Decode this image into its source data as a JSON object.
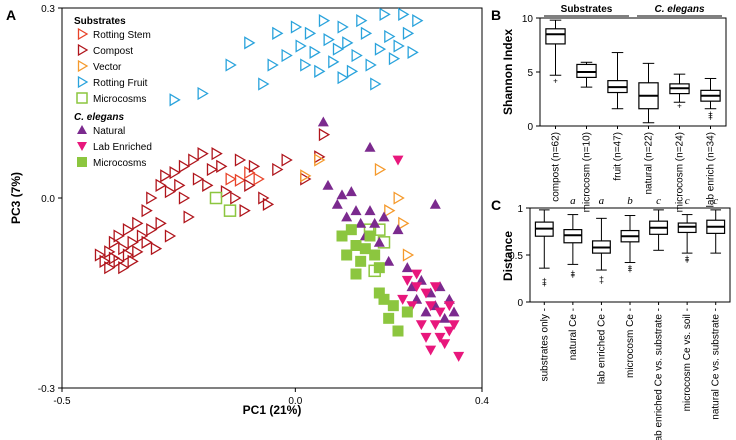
{
  "figure": {
    "panel_a": "A",
    "panel_b": "B",
    "panel_c": "C"
  },
  "colors": {
    "rotting_stem": "#e8442a",
    "compost": "#b0151c",
    "vector": "#f59a2c",
    "rotting_fruit": "#2aa3dc",
    "microcosms_sub": "#8cc63f",
    "natural": "#7b2a8e",
    "lab_enriched": "#e8177c",
    "microcosms_ce": "#8cc63f"
  },
  "chart_data": [
    {
      "type": "scatter",
      "title": "",
      "xlabel": "PC1 (21%)",
      "ylabel": "PC3 (7%)",
      "xlim": [
        -0.5,
        0.4
      ],
      "ylim": [
        -0.3,
        0.3
      ],
      "xticks": [
        "-0.5",
        "0.0",
        "0.4"
      ],
      "yticks": [
        "0.3",
        "0.0",
        "-0.3"
      ],
      "legend": {
        "substrates_title": "Substrates",
        "ce_title": "C. elegans",
        "entries": [
          {
            "key": "rotting_stem",
            "label": "Rotting Stem"
          },
          {
            "key": "compost",
            "label": "Compost"
          },
          {
            "key": "vector",
            "label": "Vector"
          },
          {
            "key": "rotting_fruit",
            "label": "Rotting Fruit"
          },
          {
            "key": "microcosms_sub",
            "label": "Microcosms"
          },
          {
            "key": "natural",
            "label": "Natural"
          },
          {
            "key": "lab_enriched",
            "label": "Lab Enriched"
          },
          {
            "key": "microcosms_ce",
            "label": "Microcosms"
          }
        ]
      },
      "series": [
        {
          "name": "Rotting Stem",
          "key": "rotting_stem",
          "shape": "tri-right-open",
          "points": [
            [
              -0.14,
              0.03
            ],
            [
              -0.12,
              0.028
            ],
            [
              -0.1,
              0.04
            ],
            [
              -0.08,
              0.03
            ]
          ]
        },
        {
          "name": "Compost",
          "key": "compost",
          "shape": "tri-right-open",
          "points": [
            [
              -0.42,
              -0.09
            ],
            [
              -0.41,
              -0.1
            ],
            [
              -0.4,
              -0.085
            ],
            [
              -0.4,
              -0.11
            ],
            [
              -0.39,
              -0.07
            ],
            [
              -0.39,
              -0.095
            ],
            [
              -0.38,
              -0.1
            ],
            [
              -0.38,
              -0.06
            ],
            [
              -0.37,
              -0.08
            ],
            [
              -0.37,
              -0.11
            ],
            [
              -0.36,
              -0.05
            ],
            [
              -0.36,
              -0.09
            ],
            [
              -0.35,
              -0.07
            ],
            [
              -0.35,
              -0.1
            ],
            [
              -0.34,
              -0.04
            ],
            [
              -0.34,
              -0.085
            ],
            [
              -0.33,
              -0.06
            ],
            [
              -0.32,
              -0.02
            ],
            [
              -0.32,
              -0.07
            ],
            [
              -0.31,
              0.0
            ],
            [
              -0.31,
              -0.05
            ],
            [
              -0.3,
              -0.08
            ],
            [
              -0.29,
              0.02
            ],
            [
              -0.29,
              -0.04
            ],
            [
              -0.28,
              0.035
            ],
            [
              -0.27,
              0.01
            ],
            [
              -0.27,
              -0.06
            ],
            [
              -0.26,
              0.04
            ],
            [
              -0.25,
              0.02
            ],
            [
              -0.24,
              0.05
            ],
            [
              -0.24,
              0.0
            ],
            [
              -0.23,
              -0.03
            ],
            [
              -0.22,
              0.06
            ],
            [
              -0.21,
              0.03
            ],
            [
              -0.2,
              0.07
            ],
            [
              -0.19,
              0.02
            ],
            [
              -0.18,
              0.045
            ],
            [
              -0.17,
              0.07
            ],
            [
              -0.16,
              0.05
            ],
            [
              -0.15,
              0.01
            ],
            [
              -0.13,
              0.0
            ],
            [
              -0.12,
              0.06
            ],
            [
              -0.11,
              -0.02
            ],
            [
              -0.1,
              0.02
            ],
            [
              -0.09,
              0.05
            ],
            [
              -0.07,
              0.0
            ],
            [
              -0.06,
              -0.01
            ],
            [
              -0.04,
              0.045
            ],
            [
              -0.02,
              0.06
            ],
            [
              0.02,
              0.03
            ],
            [
              0.05,
              0.065
            ],
            [
              0.06,
              0.1
            ]
          ]
        },
        {
          "name": "Vector",
          "key": "vector",
          "shape": "tri-right-open",
          "points": [
            [
              0.02,
              0.035
            ],
            [
              0.05,
              0.06
            ],
            [
              0.18,
              0.045
            ],
            [
              0.2,
              -0.02
            ],
            [
              0.22,
              0.0
            ],
            [
              0.23,
              -0.04
            ],
            [
              0.24,
              -0.09
            ]
          ]
        },
        {
          "name": "Rotting Fruit",
          "key": "rotting_fruit",
          "shape": "tri-right-open",
          "points": [
            [
              -0.26,
              0.155
            ],
            [
              -0.2,
              0.165
            ],
            [
              -0.14,
              0.21
            ],
            [
              -0.1,
              0.245
            ],
            [
              -0.07,
              0.18
            ],
            [
              -0.05,
              0.21
            ],
            [
              -0.04,
              0.26
            ],
            [
              -0.02,
              0.225
            ],
            [
              0.0,
              0.27
            ],
            [
              0.01,
              0.24
            ],
            [
              0.02,
              0.21
            ],
            [
              0.03,
              0.26
            ],
            [
              0.04,
              0.23
            ],
            [
              0.05,
              0.2
            ],
            [
              0.06,
              0.28
            ],
            [
              0.07,
              0.25
            ],
            [
              0.08,
              0.215
            ],
            [
              0.09,
              0.235
            ],
            [
              0.1,
              0.19
            ],
            [
              0.1,
              0.27
            ],
            [
              0.11,
              0.245
            ],
            [
              0.12,
              0.2
            ],
            [
              0.13,
              0.225
            ],
            [
              0.14,
              0.28
            ],
            [
              0.15,
              0.26
            ],
            [
              0.16,
              0.21
            ],
            [
              0.17,
              0.18
            ],
            [
              0.18,
              0.235
            ],
            [
              0.19,
              0.29
            ],
            [
              0.2,
              0.255
            ],
            [
              0.21,
              0.22
            ],
            [
              0.22,
              0.24
            ],
            [
              0.23,
              0.29
            ],
            [
              0.24,
              0.26
            ],
            [
              0.25,
              0.23
            ],
            [
              0.26,
              0.28
            ]
          ]
        },
        {
          "name": "Microcosms (substrate)",
          "key": "microcosms_sub",
          "shape": "square-open",
          "points": [
            [
              -0.17,
              0.0
            ],
            [
              -0.14,
              -0.02
            ],
            [
              0.16,
              -0.05
            ],
            [
              0.17,
              -0.115
            ],
            [
              0.18,
              -0.05
            ],
            [
              0.19,
              -0.07
            ]
          ]
        },
        {
          "name": "Natural",
          "key": "natural",
          "shape": "tri-up",
          "points": [
            [
              0.06,
              0.12
            ],
            [
              0.07,
              0.02
            ],
            [
              0.09,
              -0.01
            ],
            [
              0.1,
              0.005
            ],
            [
              0.11,
              -0.03
            ],
            [
              0.12,
              0.01
            ],
            [
              0.13,
              -0.02
            ],
            [
              0.14,
              -0.04
            ],
            [
              0.15,
              -0.06
            ],
            [
              0.16,
              -0.02
            ],
            [
              0.17,
              -0.04
            ],
            [
              0.18,
              -0.07
            ],
            [
              0.19,
              -0.03
            ],
            [
              0.2,
              -0.1
            ],
            [
              0.22,
              -0.05
            ],
            [
              0.24,
              -0.11
            ],
            [
              0.25,
              -0.14
            ],
            [
              0.26,
              -0.16
            ],
            [
              0.27,
              -0.13
            ],
            [
              0.28,
              -0.18
            ],
            [
              0.29,
              -0.15
            ],
            [
              0.3,
              -0.17
            ],
            [
              0.31,
              -0.14
            ],
            [
              0.32,
              -0.19
            ],
            [
              0.33,
              -0.16
            ],
            [
              0.34,
              -0.18
            ],
            [
              0.3,
              -0.01
            ],
            [
              0.16,
              0.08
            ]
          ]
        },
        {
          "name": "Lab Enriched",
          "key": "lab_enriched",
          "shape": "tri-down",
          "points": [
            [
              0.22,
              0.06
            ],
            [
              0.23,
              -0.16
            ],
            [
              0.24,
              -0.13
            ],
            [
              0.25,
              -0.17
            ],
            [
              0.26,
              -0.12
            ],
            [
              0.27,
              -0.2
            ],
            [
              0.28,
              -0.15
            ],
            [
              0.28,
              -0.22
            ],
            [
              0.29,
              -0.17
            ],
            [
              0.3,
              -0.14
            ],
            [
              0.3,
              -0.2
            ],
            [
              0.31,
              -0.18
            ],
            [
              0.32,
              -0.23
            ],
            [
              0.33,
              -0.17
            ],
            [
              0.33,
              -0.21
            ],
            [
              0.34,
              -0.2
            ],
            [
              0.35,
              -0.25
            ],
            [
              0.29,
              -0.24
            ],
            [
              0.31,
              -0.22
            ],
            [
              0.26,
              -0.14
            ]
          ]
        },
        {
          "name": "Microcosms (C. elegans)",
          "key": "microcosms_ce",
          "shape": "square",
          "points": [
            [
              0.1,
              -0.06
            ],
            [
              0.11,
              -0.09
            ],
            [
              0.12,
              -0.05
            ],
            [
              0.13,
              -0.075
            ],
            [
              0.14,
              -0.1
            ],
            [
              0.15,
              -0.08
            ],
            [
              0.16,
              -0.06
            ],
            [
              0.17,
              -0.09
            ],
            [
              0.18,
              -0.11
            ],
            [
              0.19,
              -0.16
            ],
            [
              0.2,
              -0.19
            ],
            [
              0.21,
              -0.17
            ],
            [
              0.22,
              -0.21
            ],
            [
              0.24,
              -0.18
            ],
            [
              0.18,
              -0.15
            ],
            [
              0.13,
              -0.12
            ]
          ]
        }
      ]
    },
    {
      "type": "box",
      "title": "",
      "ylabel": "Shannon Index",
      "ylim": [
        0,
        10
      ],
      "yticks": [
        "10",
        "5",
        "0"
      ],
      "groups": [
        {
          "label": "Substrates",
          "span": [
            0,
            2
          ]
        },
        {
          "label": "C. elegans",
          "span": [
            3,
            5
          ]
        }
      ],
      "categories": [
        "compost (n=62)",
        "microcosm (n=10)",
        "fruit (n=47)",
        "natural (n=22)",
        "microcosm (n=24)",
        "lab enrich (n=34)"
      ],
      "boxes": [
        {
          "min": 4.7,
          "q1": 7.6,
          "median": 8.5,
          "q3": 9.0,
          "max": 9.8,
          "outliers": [
            4.2
          ]
        },
        {
          "min": 3.6,
          "q1": 4.5,
          "median": 5.0,
          "q3": 5.7,
          "max": 5.9,
          "outliers": []
        },
        {
          "min": 1.6,
          "q1": 3.1,
          "median": 3.6,
          "q3": 4.2,
          "max": 6.8,
          "outliers": []
        },
        {
          "min": 0.3,
          "q1": 1.6,
          "median": 2.8,
          "q3": 4.0,
          "max": 5.8,
          "outliers": []
        },
        {
          "min": 2.2,
          "q1": 3.0,
          "median": 3.5,
          "q3": 3.9,
          "max": 4.8,
          "outliers": [
            1.9
          ]
        },
        {
          "min": 1.6,
          "q1": 2.3,
          "median": 2.8,
          "q3": 3.3,
          "max": 4.4,
          "outliers": [
            1.2,
            1.0,
            0.8
          ]
        }
      ]
    },
    {
      "type": "box",
      "title": "",
      "ylabel": "Distance",
      "ylim": [
        0,
        1
      ],
      "yticks": [
        "1",
        "0.5",
        "0"
      ],
      "categories": [
        "substrates only",
        "natural Ce",
        "lab enriched Ce",
        "microcosm Ce",
        "lab enriched Ce vs. substrate",
        "microcosm Ce vs. soil",
        "natural Ce vs. substrate"
      ],
      "significance": [
        "",
        "a",
        "a",
        "b",
        "c",
        "c",
        "c"
      ],
      "boxes": [
        {
          "min": 0.36,
          "q1": 0.7,
          "median": 0.78,
          "q3": 0.85,
          "max": 0.98,
          "outliers": [
            0.24,
            0.21,
            0.19
          ]
        },
        {
          "min": 0.4,
          "q1": 0.63,
          "median": 0.71,
          "q3": 0.77,
          "max": 0.93,
          "outliers": [
            0.32,
            0.3,
            0.28
          ]
        },
        {
          "min": 0.34,
          "q1": 0.52,
          "median": 0.58,
          "q3": 0.65,
          "max": 0.89,
          "outliers": [
            0.26,
            0.22
          ]
        },
        {
          "min": 0.42,
          "q1": 0.64,
          "median": 0.7,
          "q3": 0.76,
          "max": 0.92,
          "outliers": [
            0.38,
            0.36,
            0.34
          ]
        },
        {
          "min": 0.55,
          "q1": 0.72,
          "median": 0.79,
          "q3": 0.86,
          "max": 0.98,
          "outliers": []
        },
        {
          "min": 0.52,
          "q1": 0.74,
          "median": 0.8,
          "q3": 0.84,
          "max": 0.93,
          "outliers": [
            0.48,
            0.46,
            0.44
          ]
        },
        {
          "min": 0.52,
          "q1": 0.73,
          "median": 0.8,
          "q3": 0.87,
          "max": 0.98,
          "outliers": []
        }
      ]
    }
  ]
}
